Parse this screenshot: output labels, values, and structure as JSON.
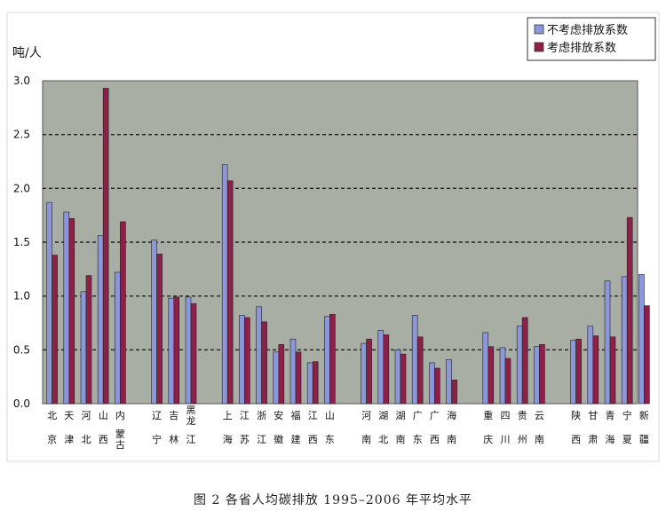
{
  "chart_data": {
    "type": "bar",
    "ylabel": "吨/人",
    "ylim": [
      0,
      3.0
    ],
    "yticks": [
      "0.0",
      "0.5",
      "1.0",
      "1.5",
      "2.0",
      "2.5",
      "3.0"
    ],
    "grid": "dashed horizontal",
    "legend_position": "top-right",
    "plot_bg": "#a8aea4",
    "colors": {
      "series1": "#8b97d8",
      "series2": "#8e1f47"
    },
    "series": [
      {
        "name": "不考虑排放系数"
      },
      {
        "name": "考虑排放系数"
      }
    ],
    "groups": [
      {
        "categories": [
          {
            "label": [
              "北",
              "京"
            ],
            "values": [
              1.87,
              1.38
            ]
          },
          {
            "label": [
              "天",
              "津"
            ],
            "values": [
              1.78,
              1.72
            ]
          },
          {
            "label": [
              "河",
              "北"
            ],
            "values": [
              1.04,
              1.19
            ]
          },
          {
            "label": [
              "山",
              "西"
            ],
            "values": [
              1.56,
              2.93
            ]
          },
          {
            "label": [
              "内",
              "蒙古"
            ],
            "values": [
              1.22,
              1.69
            ]
          }
        ]
      },
      {
        "categories": [
          {
            "label": [
              "辽",
              "宁"
            ],
            "values": [
              1.52,
              1.39
            ]
          },
          {
            "label": [
              "吉",
              "林"
            ],
            "values": [
              0.98,
              0.99
            ]
          },
          {
            "label": [
              "黑龙",
              "江"
            ],
            "values": [
              0.99,
              0.93
            ]
          }
        ]
      },
      {
        "categories": [
          {
            "label": [
              "上",
              "海"
            ],
            "values": [
              2.22,
              2.07
            ]
          },
          {
            "label": [
              "江",
              "苏"
            ],
            "values": [
              0.82,
              0.8
            ]
          },
          {
            "label": [
              "浙",
              "江"
            ],
            "values": [
              0.9,
              0.76
            ]
          },
          {
            "label": [
              "安",
              "徽"
            ],
            "values": [
              0.48,
              0.55
            ]
          },
          {
            "label": [
              "福",
              "建"
            ],
            "values": [
              0.6,
              0.48
            ]
          },
          {
            "label": [
              "江",
              "西"
            ],
            "values": [
              0.38,
              0.39
            ]
          },
          {
            "label": [
              "山",
              "东"
            ],
            "values": [
              0.81,
              0.83
            ]
          }
        ]
      },
      {
        "categories": [
          {
            "label": [
              "河",
              "南"
            ],
            "values": [
              0.56,
              0.6
            ]
          },
          {
            "label": [
              "湖",
              "北"
            ],
            "values": [
              0.68,
              0.64
            ]
          },
          {
            "label": [
              "湖",
              "南"
            ],
            "values": [
              0.5,
              0.46
            ]
          },
          {
            "label": [
              "广",
              "东"
            ],
            "values": [
              0.82,
              0.62
            ]
          },
          {
            "label": [
              "广",
              "西"
            ],
            "values": [
              0.38,
              0.33
            ]
          },
          {
            "label": [
              "海",
              "南"
            ],
            "values": [
              0.41,
              0.22
            ]
          }
        ]
      },
      {
        "categories": [
          {
            "label": [
              "重",
              "庆"
            ],
            "values": [
              0.66,
              0.53
            ]
          },
          {
            "label": [
              "四",
              "川"
            ],
            "values": [
              0.52,
              0.42
            ]
          },
          {
            "label": [
              "贵",
              "州"
            ],
            "values": [
              0.72,
              0.8
            ]
          },
          {
            "label": [
              "云",
              "南"
            ],
            "values": [
              0.53,
              0.55
            ]
          }
        ]
      },
      {
        "categories": [
          {
            "label": [
              "陕",
              "西"
            ],
            "values": [
              0.59,
              0.6
            ]
          },
          {
            "label": [
              "甘",
              "肃"
            ],
            "values": [
              0.72,
              0.63
            ]
          },
          {
            "label": [
              "青",
              "海"
            ],
            "values": [
              1.14,
              0.62
            ]
          },
          {
            "label": [
              "宁",
              "夏"
            ],
            "values": [
              1.18,
              1.73
            ]
          },
          {
            "label": [
              "新",
              "疆"
            ],
            "values": [
              1.2,
              0.91
            ]
          }
        ]
      }
    ]
  },
  "caption": "图 2   各省人均碳排放 1995–2006 年平均水平"
}
